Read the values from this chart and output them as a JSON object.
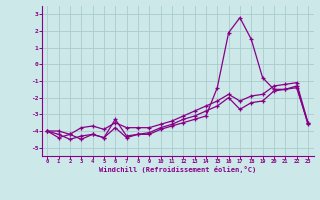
{
  "background_color": "#cce8e8",
  "grid_color": "#aacccc",
  "line_color": "#880088",
  "xlabel": "Windchill (Refroidissement éolien,°C)",
  "xlim": [
    -0.5,
    23.5
  ],
  "ylim": [
    -5.5,
    3.5
  ],
  "xticks": [
    0,
    1,
    2,
    3,
    4,
    5,
    6,
    7,
    8,
    9,
    10,
    11,
    12,
    13,
    14,
    15,
    16,
    17,
    18,
    19,
    20,
    21,
    22,
    23
  ],
  "yticks": [
    -5,
    -4,
    -3,
    -2,
    -1,
    0,
    1,
    2,
    3
  ],
  "lines": [
    [
      -4.0,
      -4.4,
      -4.2,
      -4.5,
      -4.2,
      -4.4,
      -3.3,
      -4.3,
      -4.2,
      -4.2,
      -3.9,
      -3.7,
      -3.5,
      -3.3,
      -3.1,
      -1.4,
      1.9,
      2.8,
      1.5,
      -0.8,
      -1.5,
      -1.5,
      -1.3,
      -3.6
    ],
    [
      -4.0,
      -4.2,
      -4.5,
      -4.3,
      -4.2,
      -4.4,
      -3.8,
      -4.4,
      -4.2,
      -4.1,
      -3.8,
      -3.6,
      -3.3,
      -3.1,
      -2.8,
      -2.5,
      -2.0,
      -2.7,
      -2.3,
      -2.2,
      -1.6,
      -1.5,
      -1.4,
      -3.5
    ],
    [
      -4.0,
      -4.0,
      -4.2,
      -3.8,
      -3.7,
      -3.9,
      -3.5,
      -3.8,
      -3.8,
      -3.8,
      -3.6,
      -3.4,
      -3.1,
      -2.8,
      -2.5,
      -2.2,
      -1.8,
      -2.2,
      -1.9,
      -1.8,
      -1.3,
      -1.2,
      -1.1,
      -3.5
    ]
  ]
}
